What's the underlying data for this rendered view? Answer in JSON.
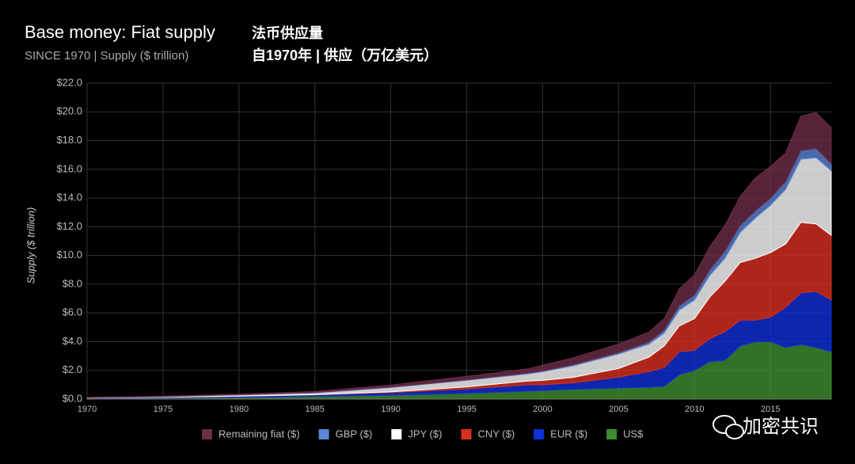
{
  "chart_data": {
    "type": "stacked-area",
    "title": "Base money: Fiat supply",
    "subtitle": "SINCE 1970 | Supply ($ trillion)",
    "title_cn": "法币供应量",
    "subtitle_cn": "自1970年 | 供应（万亿美元）",
    "y_label": "Supply ($ trillion)",
    "watermark": "加密共识",
    "x": [
      1970,
      1975,
      1980,
      1985,
      1990,
      1995,
      1999,
      2000,
      2002,
      2005,
      2007,
      2008,
      2009,
      2010,
      2011,
      2012,
      2013,
      2014,
      2015,
      2016,
      2017,
      2018,
      2019
    ],
    "series": [
      {
        "name": "US$",
        "color": "#3f8f2f",
        "values": [
          0.05,
          0.08,
          0.13,
          0.19,
          0.27,
          0.4,
          0.55,
          0.6,
          0.68,
          0.78,
          0.82,
          0.9,
          1.7,
          2.0,
          2.6,
          2.7,
          3.7,
          4.0,
          4.0,
          3.6,
          3.8,
          3.6,
          3.3
        ]
      },
      {
        "name": "EUR ($)",
        "color": "#1030d8",
        "values": [
          0.02,
          0.04,
          0.07,
          0.1,
          0.18,
          0.3,
          0.45,
          0.4,
          0.45,
          0.75,
          1.1,
          1.3,
          1.6,
          1.4,
          1.6,
          2.0,
          1.8,
          1.5,
          1.7,
          2.8,
          3.6,
          3.9,
          3.6
        ]
      },
      {
        "name": "CNY ($)",
        "color": "#d8301f",
        "values": [
          0,
          0,
          0.01,
          0.02,
          0.05,
          0.15,
          0.25,
          0.3,
          0.38,
          0.6,
          1.0,
          1.5,
          1.8,
          2.2,
          2.9,
          3.5,
          4.0,
          4.3,
          4.5,
          4.4,
          4.9,
          4.7,
          4.5
        ]
      },
      {
        "name": "JPY ($)",
        "color": "#ffffff",
        "values": [
          0.02,
          0.04,
          0.08,
          0.12,
          0.3,
          0.45,
          0.5,
          0.6,
          0.8,
          1.0,
          0.9,
          0.9,
          1.1,
          1.3,
          1.5,
          1.6,
          2.1,
          2.8,
          3.3,
          3.8,
          4.4,
          4.6,
          4.5
        ]
      },
      {
        "name": "GBP ($)",
        "color": "#5b86d6",
        "values": [
          0.01,
          0.01,
          0.01,
          0.02,
          0.03,
          0.04,
          0.05,
          0.06,
          0.07,
          0.1,
          0.15,
          0.2,
          0.3,
          0.35,
          0.4,
          0.5,
          0.5,
          0.5,
          0.5,
          0.55,
          0.6,
          0.65,
          0.5
        ]
      },
      {
        "name": "Remaining fiat ($)",
        "color": "#6b2d48",
        "values": [
          0.02,
          0.03,
          0.05,
          0.08,
          0.15,
          0.25,
          0.3,
          0.4,
          0.5,
          0.6,
          0.7,
          0.8,
          1.2,
          1.4,
          1.6,
          1.8,
          2.0,
          2.3,
          2.2,
          2.0,
          2.4,
          2.5,
          2.5
        ]
      }
    ],
    "xlim": [
      1970,
      2019
    ],
    "xticks": [
      1970,
      1975,
      1980,
      1985,
      1990,
      1995,
      2000,
      2005,
      2010,
      2015
    ],
    "ylim": [
      0,
      22
    ],
    "yticks": [
      {
        "value": 0,
        "label": "$0.0"
      },
      {
        "value": 2,
        "label": "$2.0"
      },
      {
        "value": 4,
        "label": "$4.0"
      },
      {
        "value": 6,
        "label": "$6.0"
      },
      {
        "value": 8,
        "label": "$8.0"
      },
      {
        "value": 10,
        "label": "$10.0"
      },
      {
        "value": 12,
        "label": "$12.0"
      },
      {
        "value": 14,
        "label": "$14.0"
      },
      {
        "value": 16,
        "label": "$16.0"
      },
      {
        "value": 18,
        "label": "$18.0"
      },
      {
        "value": 20,
        "label": "$20.0"
      },
      {
        "value": 22,
        "label": "$22.0"
      }
    ],
    "grid": true
  }
}
